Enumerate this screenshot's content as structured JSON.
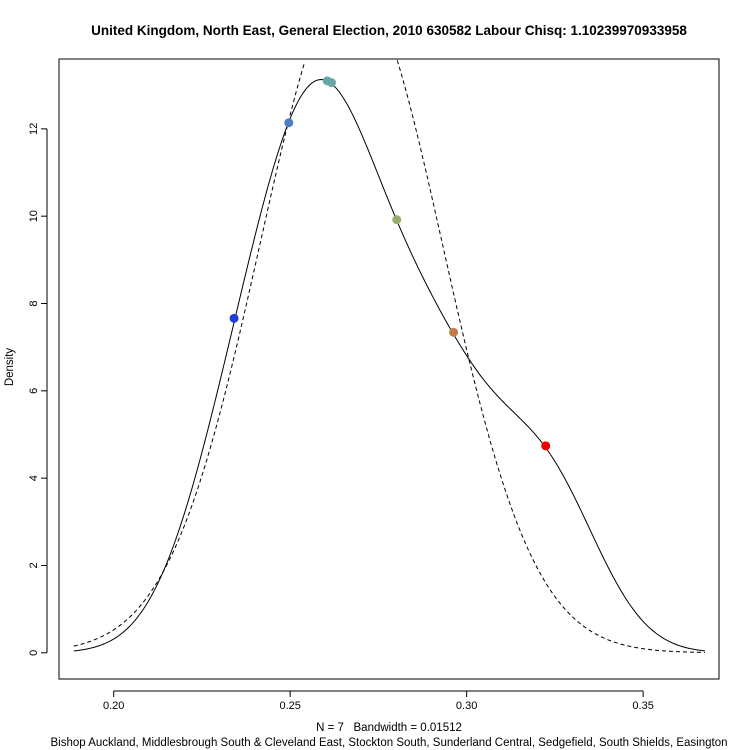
{
  "chart_data": {
    "type": "line",
    "title": "United Kingdom, North East, General Election, 2010 630582 Labour Chisq: 1.10239970933958",
    "xlabel": "N = 7   Bandwidth = 0.01512",
    "ylabel": "Density",
    "subtitle": "Bishop Auckland, Middlesbrough South & Cleveland East, Stockton South, Sunderland Central, Sedgefield, South Shields, Easington",
    "xlim": [
      0.1845,
      0.3715
    ],
    "ylim": [
      -0.6,
      13.6
    ],
    "x_ticks": [
      0.2,
      0.25,
      0.3,
      0.35
    ],
    "x_tick_labels": [
      "0.20",
      "0.25",
      "0.30",
      "0.35"
    ],
    "y_ticks": [
      0,
      2,
      4,
      6,
      8,
      10,
      12
    ],
    "y_tick_labels": [
      "0",
      "2",
      "4",
      "6",
      "8",
      "10",
      "12"
    ],
    "grid": false,
    "kde": {
      "n": 7,
      "bandwidth": 0.01512,
      "x_range": [
        0.1887,
        0.3675
      ]
    },
    "normal_fit": {
      "mean": 0.2673,
      "sd": 0.0259
    },
    "series": [
      {
        "values": [
          {
            "x": 0.2341,
            "y": 7.66,
            "color": "#1f3fd6"
          },
          {
            "x": 0.2496,
            "y": 12.14,
            "color": "#4f7fc0"
          },
          {
            "x": 0.2605,
            "y": 13.1,
            "color": "#6aa8a8"
          },
          {
            "x": 0.2617,
            "y": 13.06,
            "color": "#6aa8a8"
          },
          {
            "x": 0.2802,
            "y": 9.92,
            "color": "#9aaa70"
          },
          {
            "x": 0.2963,
            "y": 7.34,
            "color": "#c27b45"
          },
          {
            "x": 0.3224,
            "y": 4.74,
            "color": "#ee0000"
          }
        ]
      }
    ]
  }
}
